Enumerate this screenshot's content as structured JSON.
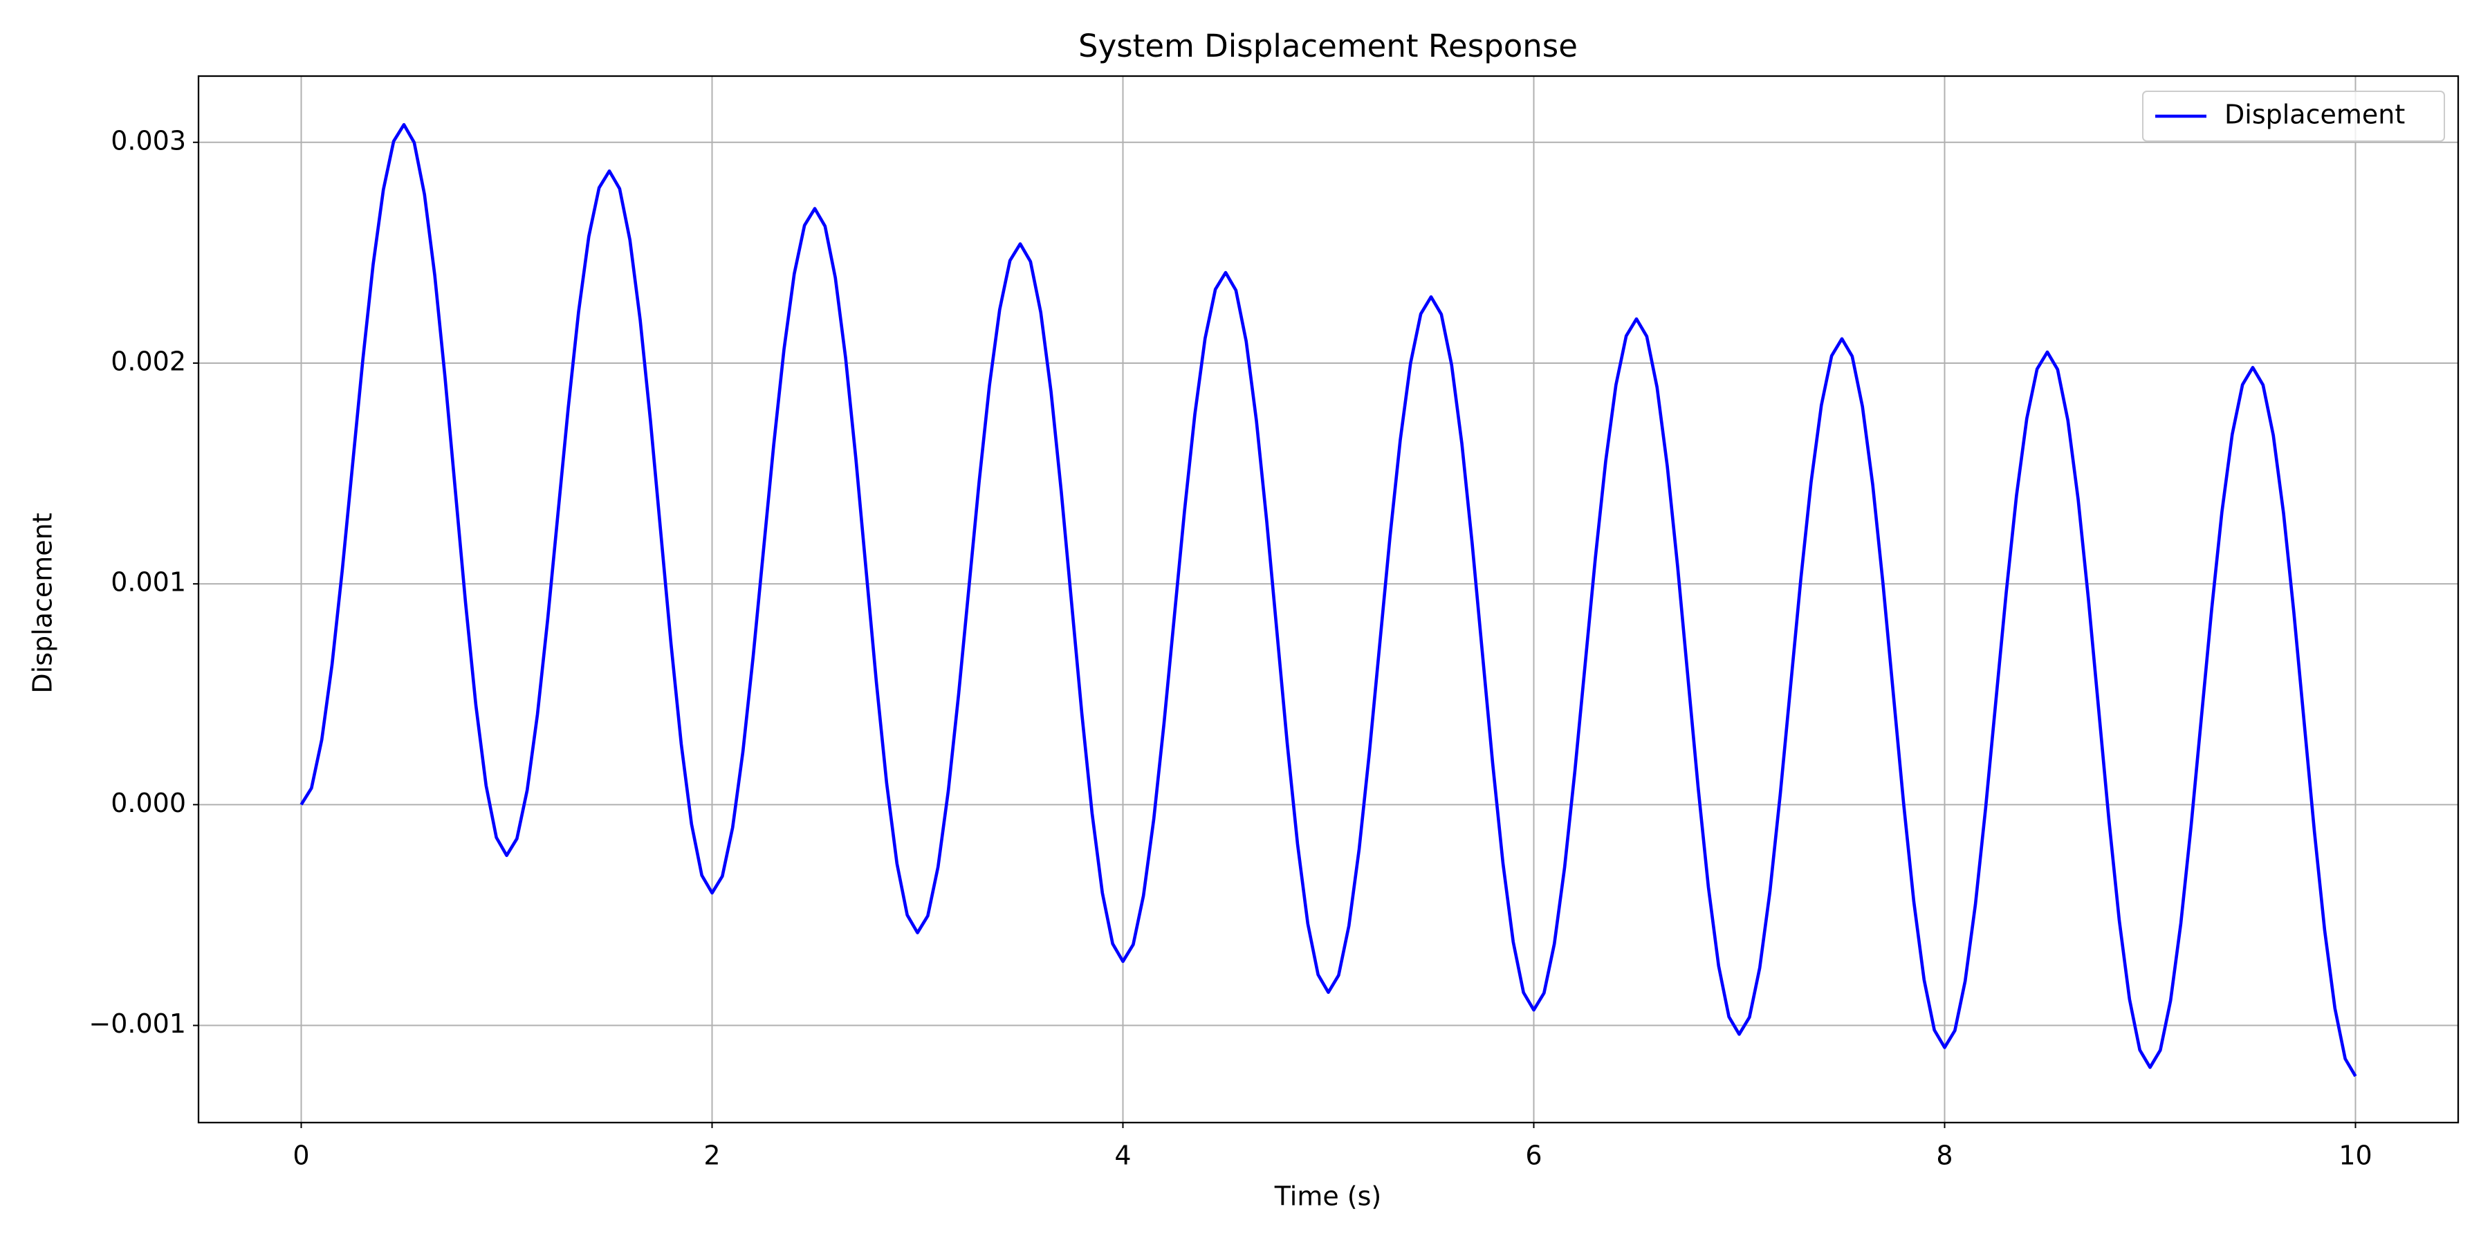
{
  "chart_data": {
    "type": "line",
    "title": "System Displacement Response",
    "xlabel": "Time (s)",
    "ylabel": "Displacement",
    "x": [
      0,
      0.05,
      0.1,
      0.15,
      0.2,
      0.25,
      0.3,
      0.35,
      0.4,
      0.45,
      0.5,
      0.55,
      0.6,
      0.65,
      0.7,
      0.75,
      0.8,
      0.85,
      0.9,
      0.95,
      1,
      1.05,
      1.1,
      1.15,
      1.2,
      1.25,
      1.3,
      1.35,
      1.4,
      1.45,
      1.5,
      1.55,
      1.6,
      1.65,
      1.7,
      1.75,
      1.8,
      1.85,
      1.9,
      1.95,
      2,
      2.05,
      2.1,
      2.15,
      2.2,
      2.25,
      2.3,
      2.35,
      2.4,
      2.45,
      2.5,
      2.55,
      2.6,
      2.65,
      2.7,
      2.75,
      2.8,
      2.85,
      2.9,
      2.95,
      3,
      3.05,
      3.1,
      3.15,
      3.2,
      3.25,
      3.3,
      3.35,
      3.4,
      3.45,
      3.5,
      3.55,
      3.6,
      3.65,
      3.7,
      3.75,
      3.8,
      3.85,
      3.9,
      3.95,
      4,
      4.05,
      4.1,
      4.15,
      4.2,
      4.25,
      4.3,
      4.35,
      4.4,
      4.45,
      4.5,
      4.55,
      4.6,
      4.65,
      4.7,
      4.75,
      4.8,
      4.85,
      4.9,
      4.95,
      5,
      5.05,
      5.1,
      5.15,
      5.2,
      5.25,
      5.3,
      5.35,
      5.4,
      5.45,
      5.5,
      5.55,
      5.6,
      5.65,
      5.7,
      5.75,
      5.8,
      5.85,
      5.9,
      5.95,
      6,
      6.05,
      6.1,
      6.15,
      6.2,
      6.25,
      6.3,
      6.35,
      6.4,
      6.45,
      6.5,
      6.55,
      6.6,
      6.65,
      6.7,
      6.75,
      6.8,
      6.85,
      6.9,
      6.95,
      7,
      7.05,
      7.1,
      7.15,
      7.2,
      7.25,
      7.3,
      7.35,
      7.4,
      7.45,
      7.5,
      7.55,
      7.6,
      7.65,
      7.7,
      7.75,
      7.8,
      7.85,
      7.9,
      7.95,
      8,
      8.05,
      8.1,
      8.15,
      8.2,
      8.25,
      8.3,
      8.35,
      8.4,
      8.45,
      8.5,
      8.55,
      8.6,
      8.65,
      8.7,
      8.75,
      8.8,
      8.85,
      8.9,
      8.95,
      9,
      9.05,
      9.1,
      9.15,
      9.2,
      9.25,
      9.3,
      9.35,
      9.4,
      9.45,
      9.5,
      9.55,
      9.6,
      9.65,
      9.7,
      9.75,
      9.8,
      9.85,
      9.9,
      9.95,
      10
    ],
    "series": [
      {
        "name": "Displacement",
        "color": "blue",
        "values": [
          0,
          7.5e-05,
          0.000294,
          0.000634,
          0.001064,
          0.00154,
          0.002016,
          0.002446,
          0.002786,
          0.003005,
          0.00308,
          0.002999,
          0.002764,
          0.002398,
          0.001936,
          0.001425,
          0.000914,
          0.000452,
          8.6e-05,
          -0.000149,
          -0.00023,
          -0.000154,
          6.6e-05,
          0.000409,
          0.000841,
          0.00132,
          0.001799,
          0.002231,
          0.002574,
          0.002794,
          0.00287,
          0.00279,
          0.002558,
          0.002196,
          0.00174,
          0.001235,
          0.00073,
          0.000274,
          -8.8e-05,
          -0.00032,
          -0.0004,
          -0.000324,
          -0.000104,
          0.000239,
          0.000671,
          0.00115,
          0.001629,
          0.002061,
          0.002404,
          0.002624,
          0.0027,
          0.00262,
          0.002387,
          0.002024,
          0.001567,
          0.00106,
          0.000553,
          9.6e-05,
          -0.000267,
          -0.0005,
          -0.00058,
          -0.000504,
          -0.000282,
          6.3e-05,
          0.000498,
          0.00098,
          0.001462,
          0.001897,
          0.002242,
          0.002464,
          0.00254,
          0.00246,
          0.00223,
          0.001871,
          0.001417,
          0.000915,
          0.000413,
          -4e-05,
          -0.0004,
          -0.00063,
          -0.00071,
          -0.000634,
          -0.000412,
          -6.7e-05,
          0.000368,
          0.00085,
          0.001332,
          0.001767,
          0.002112,
          0.002334,
          0.00241,
          0.00233,
          0.002099,
          0.001738,
          0.001284,
          0.00078,
          0.000276,
          -0.000178,
          -0.000539,
          -0.00077,
          -0.00085,
          -0.000773,
          -0.000549,
          -0.000201,
          0.000238,
          0.000725,
          0.001212,
          0.001651,
          0.001999,
          0.002223,
          0.0023,
          0.002221,
          0.001992,
          0.001635,
          0.001184,
          0.000685,
          0.000186,
          -0.000265,
          -0.000622,
          -0.000851,
          -0.00093,
          -0.000853,
          -0.000631,
          -0.000285,
          0.000151,
          0.000635,
          0.001119,
          0.001555,
          0.001901,
          0.002123,
          0.0022,
          0.002121,
          0.001891,
          0.001533,
          0.001081,
          0.00058,
          7.9e-05,
          -0.000373,
          -0.000731,
          -0.000961,
          -0.00104,
          -0.000963,
          -0.000739,
          -0.000391,
          4.8e-05,
          0.000535,
          0.001022,
          0.001461,
          0.001809,
          0.002033,
          0.00211,
          0.002031,
          0.001803,
          0.001449,
          0.001001,
          0.000505,
          9e-06,
          -0.000439,
          -0.000793,
          -0.001021,
          -0.0011,
          -0.001023,
          -0.000799,
          -0.000451,
          -1.2e-05,
          0.000475,
          0.000962,
          0.001401,
          0.001749,
          0.001973,
          0.00205,
          0.001971,
          0.001741,
          0.001383,
          0.000931,
          0.00043,
          -7.1e-05,
          -0.000523,
          -0.000881,
          -0.001111,
          -0.00119,
          -0.001112,
          -0.000887,
          -0.000537,
          -9.5e-05,
          0.000395,
          0.000885,
          0.001327,
          0.001677,
          0.001902,
          0.00198,
          0.001901,
          0.001673,
          0.001319,
          0.000871,
          0.000375,
          -0.000121,
          -0.000569,
          -0.000923,
          -0.001151,
          -0.00123
        ]
      }
    ],
    "xlim": [
      -0.5,
      10.5
    ],
    "xticks": [
      0,
      2,
      4,
      6,
      8,
      10
    ],
    "ylim": [
      -0.00144,
      0.0033
    ],
    "yticks": [
      {
        "value": -0.001,
        "label": "−0.001"
      },
      {
        "value": 0,
        "label": "0.000"
      },
      0.001,
      0.002,
      0.003
    ],
    "grid": true,
    "legend": "upper right"
  }
}
